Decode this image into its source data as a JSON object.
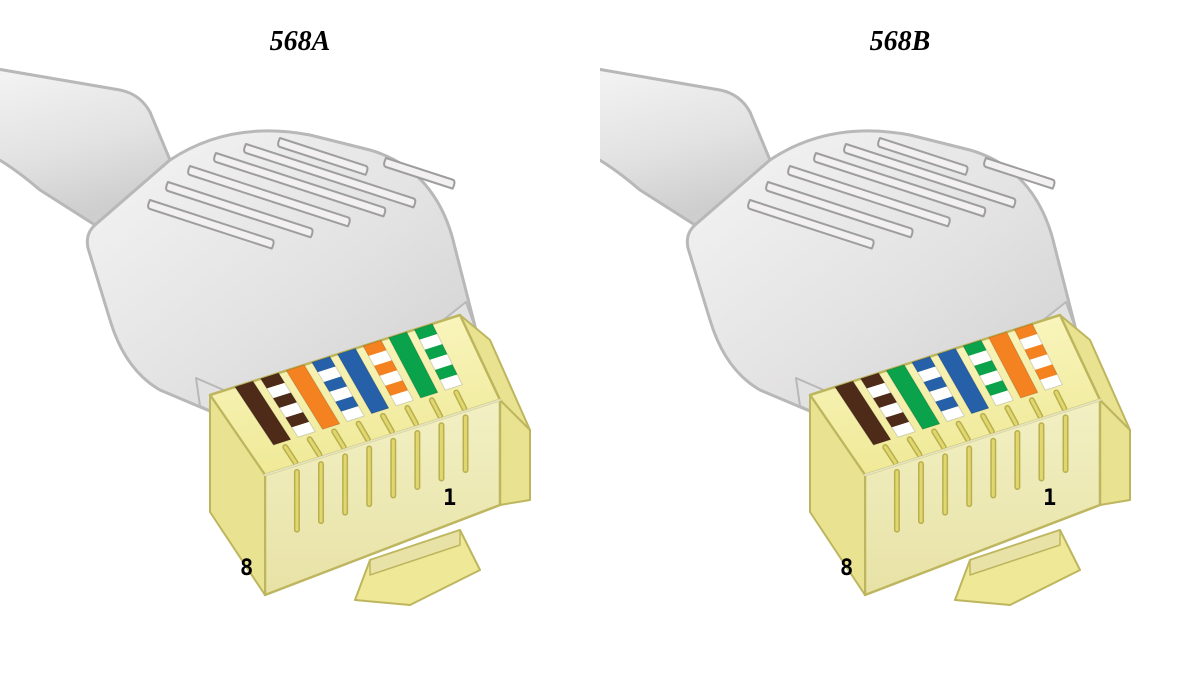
{
  "background_color": "#ffffff",
  "boot_colors": {
    "edge": "#b9b8b8",
    "light": "#f5f5f5",
    "mid": "#e3e2e2",
    "dark": "#cfcece",
    "ridge_line": "#9e9e9e",
    "ridge_gap": "#f2f0f0"
  },
  "plug_colors": {
    "top_light": "#fbf7c3",
    "top_dark": "#efe997",
    "front_light": "#f2f0c4",
    "front_dark": "#e8e2a6",
    "side": "#e9e290",
    "edge": "#bdb65e",
    "contact": "#e0d76e",
    "contact_edge": "#b9af50"
  },
  "wire": {
    "brown": "#4e2a18",
    "orange": "#f58220",
    "blue": "#2560a8",
    "green": "#0aa24a",
    "white": "#ffffff",
    "dash": 10
  },
  "title_fontsize": 28,
  "pin_label_fontsize": 22,
  "connectors": [
    {
      "key": "a",
      "title": "568A",
      "pin1_label": "1",
      "pin8_label": "8",
      "wires_pin8_to_pin1": [
        {
          "type": "solid",
          "color": "#4e2a18"
        },
        {
          "type": "striped",
          "color": "#4e2a18"
        },
        {
          "type": "solid",
          "color": "#f58220"
        },
        {
          "type": "striped",
          "color": "#2560a8"
        },
        {
          "type": "solid",
          "color": "#2560a8"
        },
        {
          "type": "striped",
          "color": "#f58220"
        },
        {
          "type": "solid",
          "color": "#0aa24a"
        },
        {
          "type": "striped",
          "color": "#0aa24a"
        }
      ]
    },
    {
      "key": "b",
      "title": "568B",
      "pin1_label": "1",
      "pin8_label": "8",
      "wires_pin8_to_pin1": [
        {
          "type": "solid",
          "color": "#4e2a18"
        },
        {
          "type": "striped",
          "color": "#4e2a18"
        },
        {
          "type": "solid",
          "color": "#0aa24a"
        },
        {
          "type": "striped",
          "color": "#2560a8"
        },
        {
          "type": "solid",
          "color": "#2560a8"
        },
        {
          "type": "striped",
          "color": "#0aa24a"
        },
        {
          "type": "solid",
          "color": "#f58220"
        },
        {
          "type": "striped",
          "color": "#f58220"
        }
      ]
    }
  ],
  "geometry_comment": "Each connector drawn in a 600x678 SVG. Boot enters upper-left, plug body bottom-center."
}
